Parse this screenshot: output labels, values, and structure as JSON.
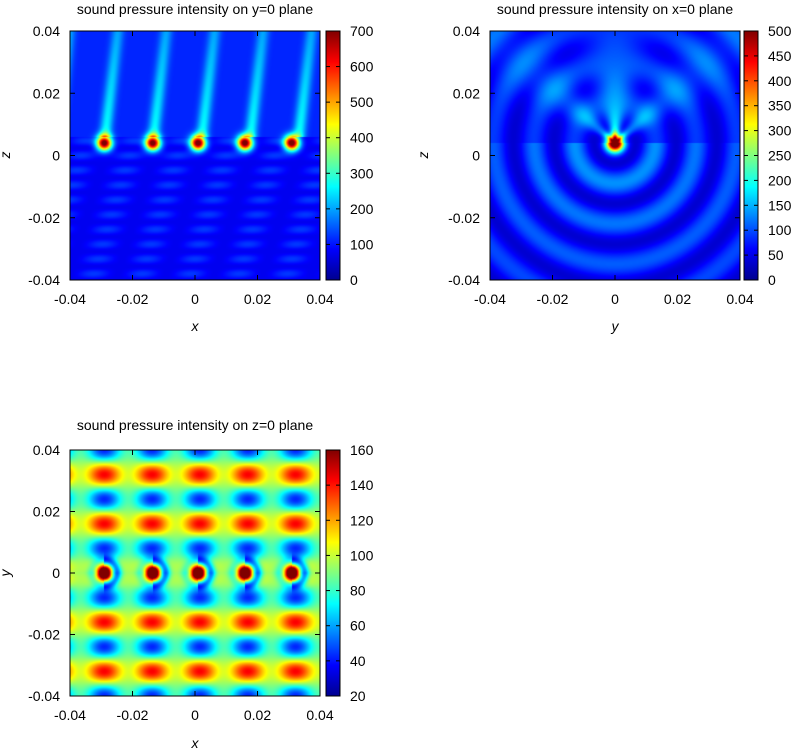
{
  "chart_data": [
    {
      "type": "heatmap",
      "title": "sound pressure intensity on y=0 plane",
      "xlabel": "x",
      "ylabel": "z",
      "xlim": [
        -0.04,
        0.04
      ],
      "ylim": [
        -0.04,
        0.04
      ],
      "x_ticks": [
        "-0.04",
        "-0.02",
        "0",
        "0.02",
        "0.04"
      ],
      "y_ticks": [
        "0.04",
        "0.02",
        "0",
        "-0.02",
        "-0.04"
      ],
      "colorbar": {
        "min": 0,
        "max": 700,
        "ticks": [
          "700",
          "600",
          "500",
          "400",
          "300",
          "200",
          "100",
          "0"
        ]
      },
      "colormap": "jet",
      "sources": [
        {
          "x": -0.029,
          "z": 0.004
        },
        {
          "x": -0.0135,
          "z": 0.004
        },
        {
          "x": 0.001,
          "z": 0.004
        },
        {
          "x": 0.016,
          "z": 0.004
        },
        {
          "x": 0.031,
          "z": 0.004
        }
      ]
    },
    {
      "type": "heatmap",
      "title": "sound pressure intensity on x=0 plane",
      "xlabel": "y",
      "ylabel": "z",
      "xlim": [
        -0.04,
        0.04
      ],
      "ylim": [
        -0.04,
        0.04
      ],
      "x_ticks": [
        "-0.04",
        "-0.02",
        "0",
        "0.02",
        "0.04"
      ],
      "y_ticks": [
        "0.04",
        "0.02",
        "0",
        "-0.02",
        "-0.04"
      ],
      "colorbar": {
        "min": 0,
        "max": 500,
        "ticks": [
          "500",
          "450",
          "400",
          "350",
          "300",
          "250",
          "200",
          "150",
          "100",
          "50",
          "0"
        ]
      },
      "colormap": "jet",
      "sources": [
        {
          "y": 0.0,
          "z": 0.004
        }
      ]
    },
    {
      "type": "heatmap",
      "title": "sound pressure intensity on z=0 plane",
      "xlabel": "x",
      "ylabel": "y",
      "xlim": [
        -0.04,
        0.04
      ],
      "ylim": [
        -0.04,
        0.04
      ],
      "x_ticks": [
        "-0.04",
        "-0.02",
        "0",
        "0.02",
        "0.04"
      ],
      "y_ticks": [
        "0.04",
        "0.02",
        "0",
        "-0.02",
        "-0.04"
      ],
      "colorbar": {
        "min": 20,
        "max": 160,
        "ticks": [
          "160",
          "140",
          "120",
          "100",
          "80",
          "60",
          "40",
          "20"
        ]
      },
      "colormap": "jet",
      "sources": [
        {
          "x": -0.029,
          "y": 0.0
        },
        {
          "x": -0.0135,
          "y": 0.0
        },
        {
          "x": 0.001,
          "y": 0.0
        },
        {
          "x": 0.016,
          "y": 0.0
        },
        {
          "x": 0.031,
          "y": 0.0
        }
      ]
    }
  ]
}
